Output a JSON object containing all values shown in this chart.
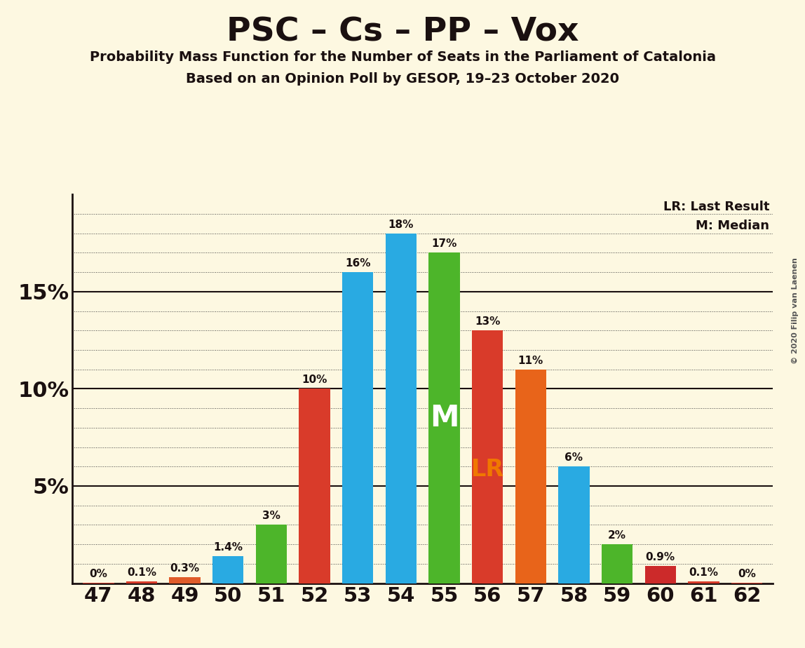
{
  "seats": [
    47,
    48,
    49,
    50,
    51,
    52,
    53,
    54,
    55,
    56,
    57,
    58,
    59,
    60,
    61,
    62
  ],
  "values": [
    0.02,
    0.1,
    0.3,
    1.4,
    3.0,
    10.0,
    16.0,
    18.0,
    17.0,
    13.0,
    11.0,
    6.0,
    2.0,
    0.9,
    0.1,
    0.02
  ],
  "colors": [
    "#d93b2a",
    "#d93b2a",
    "#e05c2a",
    "#29aae2",
    "#4db52a",
    "#d93b2a",
    "#29aae2",
    "#29aae2",
    "#4db52a",
    "#d93b2a",
    "#e8641a",
    "#29aae2",
    "#4db52a",
    "#cc2a2a",
    "#d93b2a",
    "#d93b2a"
  ],
  "labels": [
    "0%",
    "0.1%",
    "0.3%",
    "1.4%",
    "3%",
    "10%",
    "16%",
    "18%",
    "17%",
    "13%",
    "11%",
    "6%",
    "2%",
    "0.9%",
    "0.1%",
    "0%"
  ],
  "title": "PSC – Cs – PP – Vox",
  "subtitle1": "Probability Mass Function for the Number of Seats in the Parliament of Catalonia",
  "subtitle2": "Based on an Opinion Poll by GESOP, 19–23 October 2020",
  "background_color": "#fdf8e1",
  "median_seat": 55,
  "lr_seat": 56,
  "median_label": "M",
  "lr_label": "LR",
  "lr_label_color": "#f07800",
  "median_label_color": "#ffffff",
  "legend_lr": "LR: Last Result",
  "legend_m": "M: Median",
  "copyright": "© 2020 Filip van Laenen",
  "ylim": [
    0,
    20
  ],
  "grid_color": "#444444",
  "label_color": "#1a1010",
  "spine_color": "#1a1010"
}
